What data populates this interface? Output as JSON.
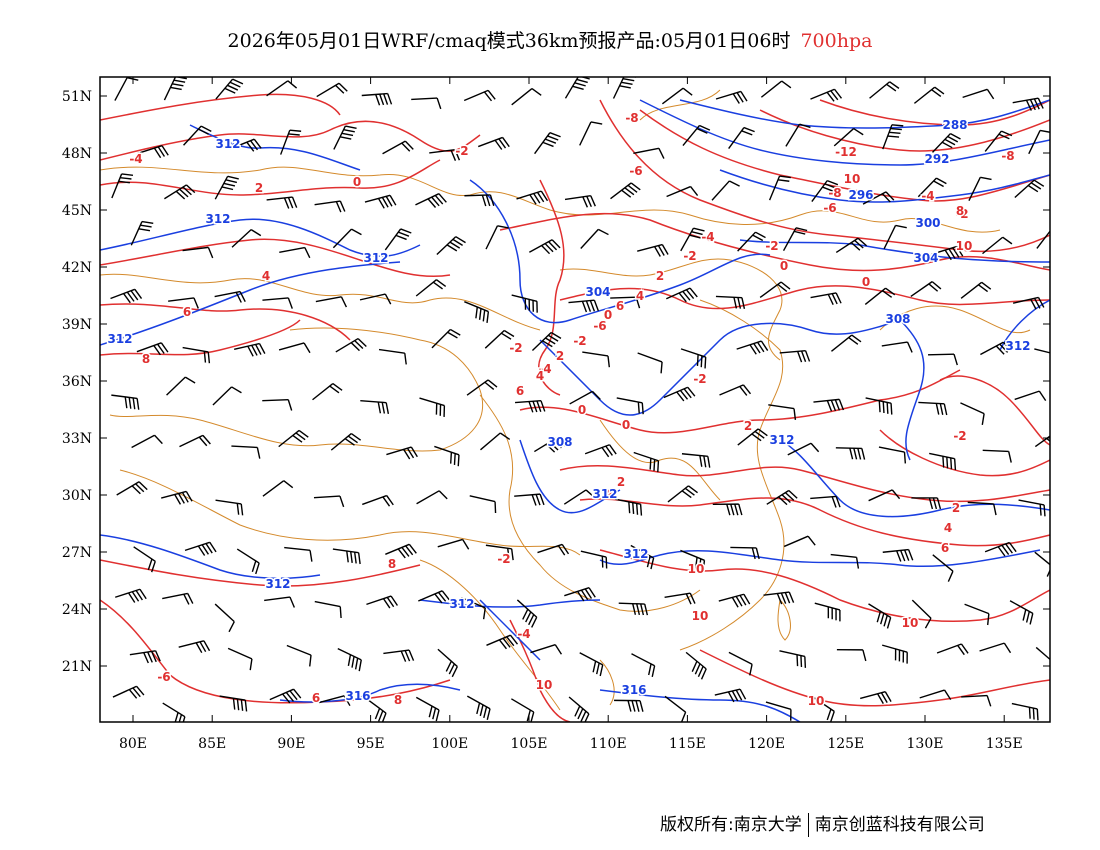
{
  "title": {
    "main": "2026年05月01日WRF/cmaq模式36km预报产品:05月01日06时",
    "level": "700hpa"
  },
  "axes": {
    "lat_labels": [
      "51N",
      "48N",
      "45N",
      "42N",
      "39N",
      "36N",
      "33N",
      "30N",
      "27N",
      "24N",
      "21N"
    ],
    "lon_labels": [
      "80E",
      "85E",
      "90E",
      "95E",
      "100E",
      "105E",
      "110E",
      "115E",
      "120E",
      "125E",
      "130E",
      "135E"
    ]
  },
  "colors": {
    "temperature": "#e03030",
    "geopotential": "#1a3fe0",
    "boundary": "#d48a2c",
    "barb": "#000000"
  },
  "height_labels": [
    "312",
    "312",
    "312",
    "312",
    "304",
    "308",
    "312",
    "312",
    "312",
    "312",
    "312",
    "316",
    "316",
    "288",
    "292",
    "296",
    "300",
    "304",
    "308",
    "312"
  ],
  "temp_labels": [
    "-4",
    "-2",
    "0",
    "2",
    "4",
    "6",
    "8",
    "-8",
    "-6",
    "-12",
    "10",
    "-8",
    "-6",
    "-4",
    "-2",
    "0",
    "-4",
    "-2",
    "0",
    "-2",
    "-4",
    "0",
    "0",
    "0",
    "-2",
    "2",
    "2",
    "4",
    "-2",
    "2",
    "4",
    "6",
    "8",
    "-2",
    "-4",
    "-6",
    "6",
    "8",
    "10",
    "10",
    "10",
    "10",
    "10",
    "-8",
    "8",
    "10",
    "-2",
    "2",
    "4",
    "6",
    "-6",
    "-2",
    "2",
    "4",
    "6"
  ],
  "footer": {
    "left": "版权所有:南京大学",
    "right": "南京创蓝科技有限公司"
  }
}
